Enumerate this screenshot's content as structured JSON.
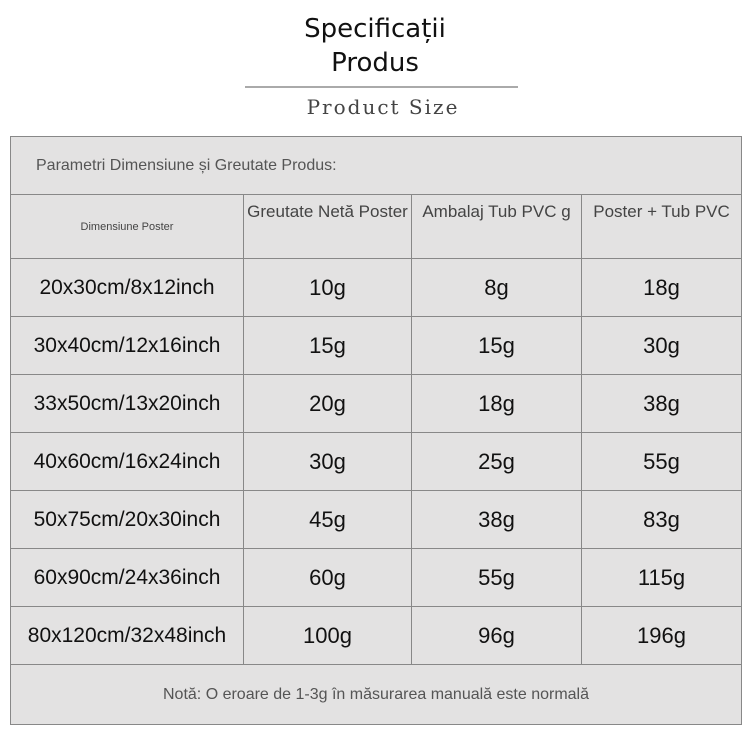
{
  "title_line1": "Specificații",
  "title_line2": "Produs",
  "subtitle": "Product Size",
  "table": {
    "caption": "Parametri Dimensiune și Greutate Produs:",
    "headers": [
      "Dimensiune Poster",
      "Greutate Netă Poster",
      "Ambalaj Tub PVC g",
      "Poster + Tub PVC"
    ],
    "rows": [
      [
        "20x30cm/8x12inch",
        "10g",
        "8g",
        "18g"
      ],
      [
        "30x40cm/12x16inch",
        "15g",
        "15g",
        "30g"
      ],
      [
        "33x50cm/13x20inch",
        "20g",
        "18g",
        "38g"
      ],
      [
        "40x60cm/16x24inch",
        "30g",
        "25g",
        "55g"
      ],
      [
        "50x75cm/20x30inch",
        "45g",
        "38g",
        "83g"
      ],
      [
        "60x90cm/24x36inch",
        "60g",
        "55g",
        "115g"
      ],
      [
        "80x120cm/32x48inch",
        "100g",
        "96g",
        "196g"
      ]
    ],
    "note": "Notă: O eroare de 1-3g în măsurarea manuală este normală"
  }
}
